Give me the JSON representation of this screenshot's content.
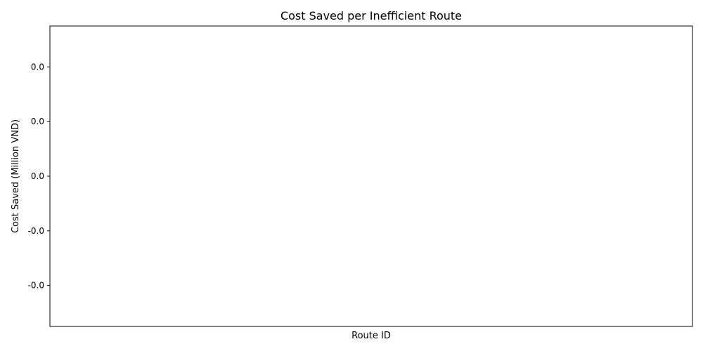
{
  "chart_data": {
    "type": "bar",
    "title": "Cost Saved per Inefficient Route",
    "xlabel": "Route ID",
    "ylabel": "Cost Saved (Million VND)",
    "categories": [],
    "values": [],
    "ylim": [
      -0.055,
      0.055
    ],
    "yticks": [
      {
        "value": 0.04,
        "label": "0.0"
      },
      {
        "value": 0.02,
        "label": "0.0"
      },
      {
        "value": 0.0,
        "label": "0.0"
      },
      {
        "value": -0.02,
        "label": "-0.0"
      },
      {
        "value": -0.04,
        "label": "-0.0"
      }
    ],
    "grid": false,
    "legend": null
  }
}
